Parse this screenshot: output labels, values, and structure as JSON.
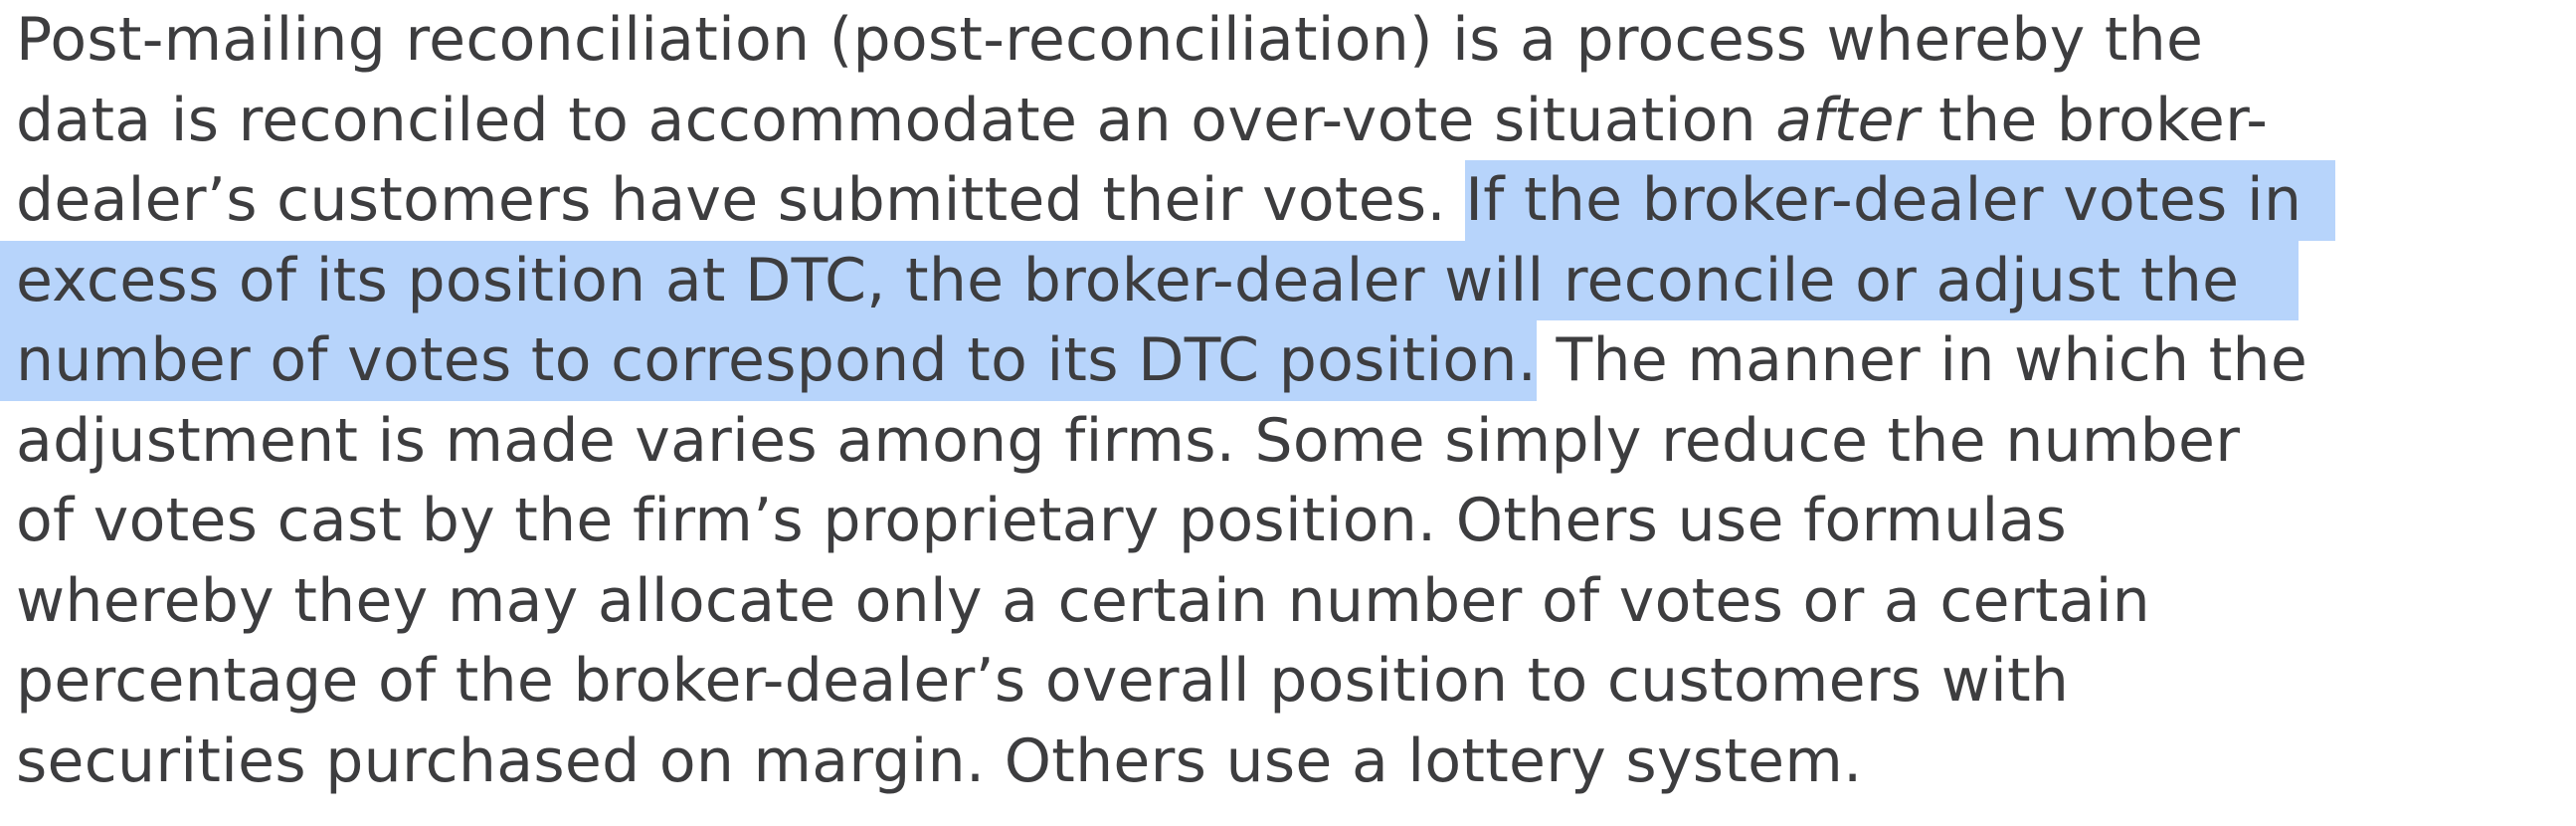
{
  "paragraph": {
    "line1": "Post-mailing reconciliation (post-reconciliation) is a process whereby the",
    "line2_a": "data is reconciled to accommodate an over-vote situation ",
    "line2_em": "after",
    "line2_b": " the broker-",
    "line3_plain": "dealer’s customers have submitted their votes. ",
    "line3_selected": "If the broker-dealer votes in",
    "line4_selected": "excess of its position at DTC, the broker-dealer will reconcile or adjust the",
    "line5_selected": "number of votes to correspond to its DTC position.",
    "line5_plain": " The manner in which the",
    "line6": "adjustment is made varies among firms. Some simply reduce the number",
    "line7": "of votes cast by the firm’s proprietary position. Others use formulas",
    "line8": "whereby they may allocate only a certain number of votes or a certain",
    "line9": "percentage of the broker-dealer’s overall position to customers with",
    "line10": "securities purchased on margin. Others use a lottery system."
  },
  "colors": {
    "text": "#3d3d3f",
    "selection": "#b7d4fb",
    "background": "#ffffff"
  }
}
